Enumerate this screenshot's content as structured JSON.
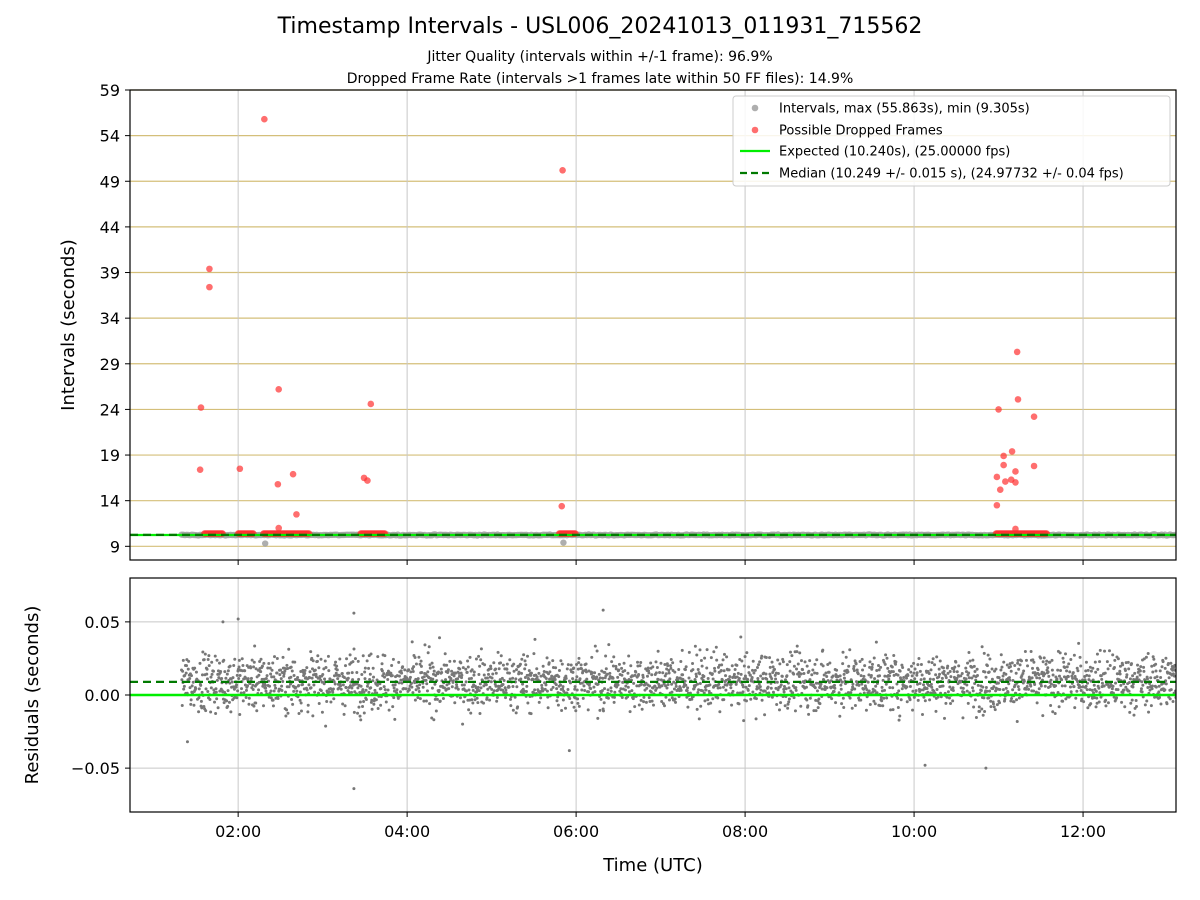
{
  "figure": {
    "title": "Timestamp Intervals - USL006_20241013_011931_715562",
    "subtitle_lines": [
      "Jitter Quality (intervals within +/-1 frame): 96.9%",
      "Dropped Frame Rate (intervals >1 frames late within 50 FF files): 14.9%"
    ]
  },
  "colors": {
    "intervals": "#a0a0a0",
    "dropped": "#ff3030",
    "expected": "#00ee00",
    "median": "#007a00",
    "residuals": "#777777",
    "ygrid_top": "#d4bf7a",
    "grid": "#c8c8c8"
  },
  "chart_data": [
    {
      "type": "scatter",
      "panel": "top",
      "ylabel": "Intervals (seconds)",
      "xlabel": "",
      "xlim_hours": [
        0.72,
        13.1
      ],
      "ylim": [
        7.5,
        59
      ],
      "yticks": [
        9,
        14,
        19,
        24,
        29,
        34,
        39,
        44,
        49,
        54,
        59
      ],
      "xticks_hours": [
        2,
        4,
        6,
        8,
        10,
        12
      ],
      "xtick_labels": [
        "02:00",
        "04:00",
        "06:00",
        "08:00",
        "10:00",
        "12:00"
      ],
      "legend_position": "top-right",
      "legend": [
        "Intervals, max (55.863s), min (9.305s)",
        "Possible Dropped Frames",
        "Expected (10.240s), (25.00000 fps)",
        "Median (10.249 +/- 0.015 s), (24.97732 +/- 0.04 fps)"
      ],
      "expected_interval": 10.24,
      "median_interval": 10.249,
      "intervals_x_range_hours": [
        1.33,
        13.1
      ],
      "intervals_low_points": [
        {
          "x": 2.32,
          "y": 9.305
        },
        {
          "x": 5.85,
          "y": 9.4
        }
      ],
      "dropped_cluster_segments_hours": [
        [
          1.6,
          1.82
        ],
        [
          2.0,
          2.18
        ],
        [
          2.3,
          2.85
        ],
        [
          3.45,
          3.75
        ],
        [
          5.8,
          6.0
        ],
        [
          10.97,
          11.58
        ]
      ],
      "dropped_cluster_y": 10.4,
      "dropped_outliers": [
        {
          "x": 1.56,
          "y": 24.2
        },
        {
          "x": 1.55,
          "y": 17.4
        },
        {
          "x": 1.66,
          "y": 39.4
        },
        {
          "x": 1.66,
          "y": 37.4
        },
        {
          "x": 2.02,
          "y": 17.5
        },
        {
          "x": 2.31,
          "y": 55.8
        },
        {
          "x": 2.48,
          "y": 26.2
        },
        {
          "x": 2.47,
          "y": 15.8
        },
        {
          "x": 2.48,
          "y": 11.0
        },
        {
          "x": 2.65,
          "y": 16.9
        },
        {
          "x": 2.69,
          "y": 12.5
        },
        {
          "x": 3.49,
          "y": 16.5
        },
        {
          "x": 3.53,
          "y": 16.2
        },
        {
          "x": 3.57,
          "y": 24.6
        },
        {
          "x": 5.84,
          "y": 50.2
        },
        {
          "x": 5.83,
          "y": 13.4
        },
        {
          "x": 10.98,
          "y": 16.6
        },
        {
          "x": 10.98,
          "y": 13.5
        },
        {
          "x": 11.0,
          "y": 24.0
        },
        {
          "x": 11.02,
          "y": 15.2
        },
        {
          "x": 11.06,
          "y": 17.9
        },
        {
          "x": 11.06,
          "y": 18.9
        },
        {
          "x": 11.08,
          "y": 16.1
        },
        {
          "x": 11.15,
          "y": 16.3
        },
        {
          "x": 11.16,
          "y": 19.4
        },
        {
          "x": 11.2,
          "y": 17.2
        },
        {
          "x": 11.2,
          "y": 16.0
        },
        {
          "x": 11.22,
          "y": 30.3
        },
        {
          "x": 11.23,
          "y": 25.1
        },
        {
          "x": 11.2,
          "y": 10.9
        },
        {
          "x": 11.42,
          "y": 23.2
        },
        {
          "x": 11.42,
          "y": 17.8
        }
      ]
    },
    {
      "type": "scatter",
      "panel": "bottom",
      "ylabel": "Residuals (seconds)",
      "xlabel": "Time (UTC)",
      "xlim_hours": [
        0.72,
        13.1
      ],
      "ylim": [
        -0.08,
        0.08
      ],
      "yticks": [
        -0.05,
        0.0,
        0.05
      ],
      "ytick_labels": [
        "−0.05",
        "0.00",
        "0.05"
      ],
      "xticks_hours": [
        2,
        4,
        6,
        8,
        10,
        12
      ],
      "xtick_labels": [
        "02:00",
        "04:00",
        "06:00",
        "08:00",
        "10:00",
        "12:00"
      ],
      "expected_residual": 0.0,
      "median_residual": 0.009,
      "residual_cloud": {
        "x_range_hours": [
          1.33,
          13.1
        ],
        "center": 0.009,
        "typical_spread": [
          -0.02,
          0.04
        ]
      },
      "residual_outliers": [
        {
          "x": 1.4,
          "y": -0.032
        },
        {
          "x": 1.82,
          "y": 0.05
        },
        {
          "x": 2.0,
          "y": 0.052
        },
        {
          "x": 3.37,
          "y": 0.056
        },
        {
          "x": 3.37,
          "y": -0.064
        },
        {
          "x": 6.32,
          "y": 0.058
        },
        {
          "x": 5.92,
          "y": -0.038
        },
        {
          "x": 10.13,
          "y": -0.048
        },
        {
          "x": 10.85,
          "y": -0.05
        }
      ]
    }
  ]
}
